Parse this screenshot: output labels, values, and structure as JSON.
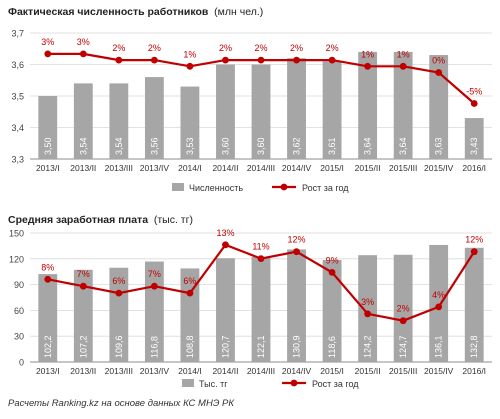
{
  "chart_data": [
    {
      "type": "bar",
      "title": "Фактическая численность работников",
      "unit": "(млн чел.)",
      "categories": [
        "2013/I",
        "2013/II",
        "2013/III",
        "2013/IV",
        "2014/I",
        "2014/II",
        "2014/III",
        "2014/IV",
        "2015/I",
        "2015/II",
        "2015/III",
        "2015/IV",
        "2016/I"
      ],
      "series": [
        {
          "name": "Численность",
          "kind": "bar",
          "color": "#a6a6a6",
          "values": [
            3.5,
            3.54,
            3.54,
            3.56,
            3.53,
            3.6,
            3.6,
            3.62,
            3.61,
            3.64,
            3.64,
            3.63,
            3.43
          ],
          "labels": [
            "3,50",
            "3,54",
            "3,54",
            "3,56",
            "3,53",
            "3,60",
            "3,60",
            "3,62",
            "3,61",
            "3,64",
            "3,64",
            "3,63",
            "3,43"
          ]
        },
        {
          "name": "Рост за год",
          "kind": "line",
          "color": "#c00000",
          "values": [
            3,
            3,
            2,
            2,
            1,
            2,
            2,
            2,
            2,
            1,
            1,
            0,
            -5
          ],
          "labels": [
            "3%",
            "3%",
            "2%",
            "2%",
            "1%",
            "2%",
            "2%",
            "2%",
            "2%",
            "1%",
            "1%",
            "0%",
            "-5%"
          ]
        }
      ],
      "y_ticks": [
        "3,7",
        "3,6",
        "3,5",
        "3,4",
        "3,3"
      ],
      "ylim": [
        3.3,
        3.7
      ],
      "grid": true,
      "legend_position": "bottom"
    },
    {
      "type": "bar",
      "title": "Средняя заработная плата",
      "unit": "(тыс. тг)",
      "categories": [
        "2013/I",
        "2013/II",
        "2013/III",
        "2013/IV",
        "2014/I",
        "2014/II",
        "2014/III",
        "2014/IV",
        "2015/I",
        "2015/II",
        "2015/III",
        "2015/IV",
        "2016/I"
      ],
      "series": [
        {
          "name": "Тыс. тг",
          "kind": "bar",
          "color": "#a6a6a6",
          "values": [
            102.2,
            107.2,
            109.6,
            116.8,
            108.8,
            120.7,
            122.1,
            130.9,
            118.6,
            124.2,
            124.7,
            136.1,
            132.8
          ],
          "labels": [
            "102,2",
            "107,2",
            "109,6",
            "116,8",
            "108,8",
            "120,7",
            "122,1",
            "130,9",
            "118,6",
            "124,2",
            "124,7",
            "136,1",
            "132,8"
          ]
        },
        {
          "name": "Рост за год",
          "kind": "line",
          "color": "#c00000",
          "values": [
            8,
            7,
            6,
            7,
            6,
            13,
            11,
            12,
            9,
            3,
            2,
            4,
            12
          ],
          "labels": [
            "8%",
            "7%",
            "6%",
            "7%",
            "6%",
            "13%",
            "11%",
            "12%",
            "9%",
            "3%",
            "2%",
            "4%",
            "12%"
          ]
        }
      ],
      "y_ticks": [
        "150",
        "120",
        "90",
        "60",
        "30",
        "0"
      ],
      "ylim": [
        0,
        150
      ],
      "grid": true,
      "legend_position": "bottom"
    }
  ],
  "footnote": "Расчеты Ranking.kz на основе данных КС МНЭ РК"
}
